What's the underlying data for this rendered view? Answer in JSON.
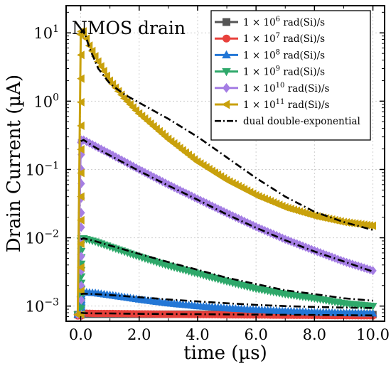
{
  "chart_data": {
    "type": "line",
    "title": "",
    "annotation": "NMOS drain",
    "xlabel": "time (µs)",
    "ylabel": "Drain Current (µA)",
    "xlim": [
      -0.5,
      10.4
    ],
    "ylim": [
      0.0006,
      25
    ],
    "y_scale": "log",
    "grid": true,
    "legend_position": "top-right",
    "x_ticks": [
      0,
      2,
      4,
      6,
      8,
      10
    ],
    "x_tick_labels": [
      "0.0",
      "2.0",
      "4.0",
      "6.0",
      "8.0",
      "10.0"
    ],
    "y_ticks": [
      0.001,
      0.01,
      0.1,
      1,
      10
    ],
    "y_tick_labels": [
      {
        "base": "10",
        "exp": "−3"
      },
      {
        "base": "10",
        "exp": "−2"
      },
      {
        "base": "10",
        "exp": "−1"
      },
      {
        "base": "10",
        "exp": "0"
      },
      {
        "base": "10",
        "exp": "1"
      }
    ],
    "series": [
      {
        "name_parts": [
          "1 × 10",
          "6",
          " rad(Si)/s"
        ],
        "color": "#555555",
        "marker": "square",
        "x": [
          -0.1,
          0.0,
          0.1,
          0.5,
          1.0,
          2.0,
          4.0,
          6.0,
          8.0,
          10.0
        ],
        "y": [
          0.00075,
          0.00076,
          0.00076,
          0.00076,
          0.00076,
          0.00076,
          0.00076,
          0.00076,
          0.00076,
          0.00075
        ]
      },
      {
        "name_parts": [
          "1 × 10",
          "7",
          " rad(Si)/s"
        ],
        "color": "#e8413c",
        "marker": "circle",
        "x": [
          -0.1,
          0.0,
          0.1,
          0.5,
          1.0,
          2.0,
          4.0,
          6.0,
          8.0,
          10.0
        ],
        "y": [
          0.00072,
          0.00076,
          0.00079,
          0.00078,
          0.00078,
          0.00077,
          0.00075,
          0.00074,
          0.00073,
          0.00072
        ]
      },
      {
        "name_parts": [
          "1 × 10",
          "8",
          " rad(Si)/s"
        ],
        "color": "#2377d6",
        "marker": "triangle-up",
        "x": [
          -0.1,
          0.0,
          0.1,
          0.5,
          1.0,
          2.0,
          3.0,
          4.0,
          5.0,
          6.0,
          7.0,
          8.0,
          9.0,
          10.0
        ],
        "y": [
          0.00075,
          0.0015,
          0.0016,
          0.00155,
          0.00145,
          0.00125,
          0.0011,
          0.001,
          0.00093,
          0.00088,
          0.00084,
          0.00081,
          0.00079,
          0.00078
        ]
      },
      {
        "name_parts": [
          "1 × 10",
          "9",
          " rad(Si)/s"
        ],
        "color": "#2ea86a",
        "marker": "triangle-down",
        "x": [
          -0.1,
          0.0,
          0.1,
          0.5,
          1.0,
          2.0,
          3.0,
          4.0,
          5.0,
          6.0,
          7.0,
          8.0,
          9.0,
          10.0
        ],
        "y": [
          0.00075,
          0.009,
          0.0098,
          0.0088,
          0.0074,
          0.0053,
          0.0039,
          0.003,
          0.0023,
          0.0018,
          0.0015,
          0.0013,
          0.0011,
          0.001
        ]
      },
      {
        "name_parts": [
          "1 × 10",
          "10",
          " rad(Si)/s"
        ],
        "color": "#a57ee4",
        "marker": "diamond",
        "x": [
          -0.1,
          0.0,
          0.1,
          0.5,
          1.0,
          2.0,
          3.0,
          4.0,
          5.0,
          6.0,
          7.0,
          8.0,
          9.0,
          10.0
        ],
        "y": [
          0.00075,
          0.25,
          0.27,
          0.22,
          0.17,
          0.1,
          0.06,
          0.037,
          0.023,
          0.0145,
          0.0095,
          0.0065,
          0.0045,
          0.0033
        ]
      },
      {
        "name_parts": [
          "1 × 10",
          "11",
          " rad(Si)/s"
        ],
        "color": "#c9a10c",
        "marker": "triangle-left",
        "x": [
          -0.1,
          0.0,
          0.1,
          0.3,
          0.6,
          1.0,
          1.5,
          2.0,
          3.0,
          4.0,
          5.0,
          6.0,
          7.0,
          8.0,
          9.0,
          10.0
        ],
        "y": [
          0.00075,
          9.5,
          10.5,
          6.5,
          3.8,
          2.0,
          1.1,
          0.66,
          0.28,
          0.13,
          0.07,
          0.042,
          0.028,
          0.021,
          0.017,
          0.015
        ]
      },
      {
        "name_parts": [
          "dual double-exponential",
          "",
          ""
        ],
        "color": "#000000",
        "marker": "dashdot",
        "segments": [
          {
            "x": [
              0.0,
              0.1,
              0.5,
              1.0,
              2.0,
              4.0,
              6.0,
              8.0,
              10.0
            ],
            "y": [
              0.0008,
              0.00079,
              0.00078,
              0.00078,
              0.00077,
              0.00076,
              0.00075,
              0.00074,
              0.00073
            ]
          },
          {
            "x": [
              0.0,
              0.1,
              0.5,
              1.0,
              2.0,
              3.0,
              4.0,
              5.0,
              6.0,
              7.0,
              8.0,
              9.0,
              10.0
            ],
            "y": [
              0.0015,
              0.00152,
              0.0015,
              0.00145,
              0.00135,
              0.00125,
              0.00117,
              0.0011,
              0.00104,
              0.001,
              0.00097,
              0.00095,
              0.00094
            ]
          },
          {
            "x": [
              0.0,
              0.1,
              0.5,
              1.0,
              2.0,
              3.0,
              4.0,
              5.0,
              6.0,
              7.0,
              8.0,
              9.0,
              10.0
            ],
            "y": [
              0.0095,
              0.0098,
              0.0089,
              0.0077,
              0.0058,
              0.0044,
              0.0034,
              0.0026,
              0.0021,
              0.0017,
              0.0015,
              0.0013,
              0.0012
            ]
          },
          {
            "x": [
              0.0,
              0.1,
              0.5,
              1.0,
              2.0,
              3.0,
              4.0,
              5.0,
              6.0,
              7.0,
              8.0,
              9.0,
              10.0
            ],
            "y": [
              0.26,
              0.27,
              0.21,
              0.16,
              0.095,
              0.058,
              0.036,
              0.022,
              0.014,
              0.0092,
              0.0063,
              0.0045,
              0.0032
            ]
          },
          {
            "x": [
              0.0,
              0.1,
              0.3,
              0.6,
              1.0,
              1.5,
              2.0,
              3.0,
              4.0,
              5.0,
              6.0,
              7.0,
              8.0,
              9.0,
              10.0
            ],
            "y": [
              10.0,
              11.0,
              6.0,
              3.0,
              1.8,
              1.25,
              0.95,
              0.55,
              0.3,
              0.15,
              0.075,
              0.04,
              0.024,
              0.017,
              0.013
            ]
          }
        ]
      }
    ]
  }
}
